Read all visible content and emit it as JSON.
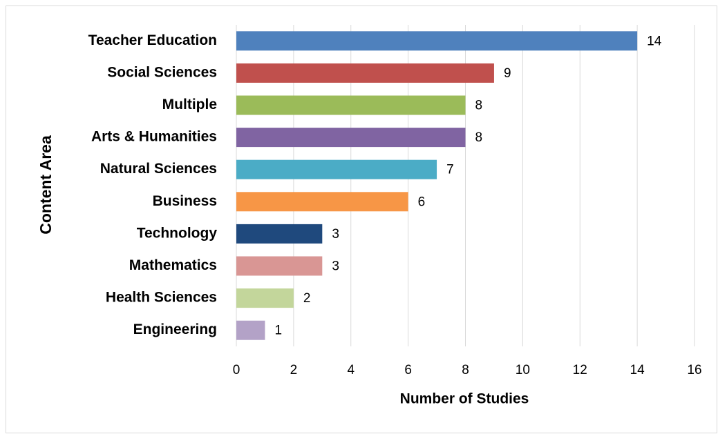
{
  "chart_data": {
    "type": "bar",
    "orientation": "horizontal",
    "x_label": "Number of Studies",
    "y_label": "Content Area",
    "categories": [
      "Teacher Education",
      "Social Sciences",
      "Multiple",
      "Arts & Humanities",
      "Natural Sciences",
      "Business",
      "Technology",
      "Mathematics",
      "Health Sciences",
      "Engineering"
    ],
    "values": [
      14,
      9,
      8,
      8,
      7,
      6,
      3,
      3,
      2,
      1
    ],
    "colors": [
      "#4f81bd",
      "#c0504d",
      "#9bbb59",
      "#8064a2",
      "#4bacc6",
      "#f79646",
      "#1f497d",
      "#d99694",
      "#c3d69b",
      "#b3a2c7"
    ],
    "xlim": [
      0,
      16
    ],
    "xticks": [
      0,
      2,
      4,
      6,
      8,
      10,
      12,
      14,
      16
    ],
    "grid": true,
    "data_labels": true
  }
}
